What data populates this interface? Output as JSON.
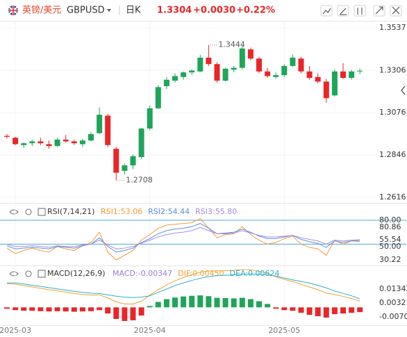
{
  "header": {
    "pair_cn": "英镑/美元",
    "symbol": "GBPUSD",
    "period": "日K",
    "price": "1.3304",
    "change": "+0.0030",
    "change_pct": "+0.22%"
  },
  "chart_data": [
    {
      "type": "candlestick",
      "categories": [
        null,
        "2025-03",
        null,
        null,
        null,
        null,
        null,
        null,
        null,
        null,
        null,
        null,
        null,
        null,
        null,
        null,
        null,
        "2025-04",
        null,
        null,
        null,
        null,
        null,
        null,
        null,
        null,
        null,
        null,
        null,
        null,
        null,
        null,
        null,
        "2025-05",
        null,
        null,
        null,
        null,
        null,
        null,
        null,
        null,
        null
      ],
      "open": [
        1.295,
        1.294,
        1.29,
        1.291,
        1.292,
        1.2905,
        1.2895,
        1.293,
        1.292,
        1.2905,
        1.2925,
        1.2965,
        1.306,
        1.288,
        1.276,
        1.279,
        1.2835,
        1.299,
        1.31,
        1.322,
        1.325,
        1.327,
        1.3295,
        1.33,
        1.3375,
        1.334,
        1.325,
        1.331,
        1.332,
        1.342,
        1.337,
        1.33,
        1.327,
        1.328,
        1.333,
        1.337,
        1.33,
        1.327,
        1.3245,
        1.317,
        1.33,
        1.3265,
        1.33
      ],
      "high": [
        1.296,
        1.2945,
        1.2915,
        1.293,
        1.294,
        1.2925,
        1.294,
        1.2955,
        1.293,
        1.2935,
        1.297,
        1.3105,
        1.307,
        1.289,
        1.28,
        1.285,
        1.2995,
        1.3115,
        1.3225,
        1.327,
        1.329,
        1.33,
        1.331,
        1.339,
        1.3444,
        1.335,
        1.332,
        1.333,
        1.344,
        1.343,
        1.338,
        1.332,
        1.3295,
        1.334,
        1.339,
        1.338,
        1.333,
        1.329,
        1.326,
        1.331,
        1.3345,
        1.331,
        1.3315
      ],
      "low": [
        1.2935,
        1.29,
        1.2885,
        1.2895,
        1.29,
        1.288,
        1.289,
        1.2915,
        1.29,
        1.289,
        1.292,
        1.296,
        1.289,
        1.2708,
        1.274,
        1.277,
        1.2825,
        1.298,
        1.3095,
        1.3205,
        1.324,
        1.3255,
        1.328,
        1.3295,
        1.333,
        1.324,
        1.3245,
        1.3295,
        1.331,
        1.336,
        1.329,
        1.3265,
        1.326,
        1.327,
        1.3325,
        1.329,
        1.3255,
        1.3235,
        1.313,
        1.3165,
        1.326,
        1.3255,
        1.3285
      ],
      "close": [
        1.2945,
        1.2905,
        1.291,
        1.292,
        1.291,
        1.2895,
        1.293,
        1.292,
        1.291,
        1.2925,
        1.296,
        1.3065,
        1.29,
        1.275,
        1.279,
        1.284,
        1.299,
        1.31,
        1.3215,
        1.3255,
        1.3275,
        1.3295,
        1.3305,
        1.3375,
        1.334,
        1.325,
        1.3315,
        1.332,
        1.3425,
        1.337,
        1.33,
        1.3275,
        1.328,
        1.333,
        1.3375,
        1.33,
        1.3265,
        1.3245,
        1.3155,
        1.33,
        1.3265,
        1.33,
        1.3304
      ],
      "up_color": "#1fa55a",
      "down_color": "#e8262a",
      "ylim": [
        1.2586,
        1.3575
      ],
      "yticks": [
        1.3537,
        1.3306,
        1.3076,
        1.2846,
        1.2616
      ],
      "annotations": [
        "1.3444",
        "1.2708"
      ]
    },
    {
      "type": "line",
      "title": "RSI(7,14,21)",
      "series": [
        {
          "name": "RSI1:53.06",
          "color": "#f29a38",
          "values": [
            45,
            38,
            42,
            45,
            42,
            40,
            47,
            44,
            42,
            48,
            52,
            65,
            40,
            30,
            36,
            42,
            55,
            62,
            70,
            74,
            75,
            76,
            77,
            82,
            70,
            58,
            62,
            63,
            72,
            62,
            55,
            50,
            52,
            57,
            60,
            50,
            46,
            44,
            36,
            55,
            50,
            54,
            53.06
          ]
        },
        {
          "name": "RSI2:54.44",
          "color": "#5b8fe0",
          "values": [
            48,
            44,
            45,
            46,
            45,
            44,
            47,
            46,
            45,
            48,
            50,
            58,
            47,
            40,
            42,
            45,
            52,
            57,
            63,
            67,
            69,
            70,
            72,
            76,
            70,
            63,
            64,
            65,
            69,
            65,
            60,
            57,
            57,
            59,
            61,
            56,
            53,
            51,
            46,
            54,
            52,
            54,
            54.44
          ]
        },
        {
          "name": "RSI3:55.80",
          "color": "#a58ce0",
          "values": [
            50,
            47,
            47,
            48,
            47,
            46,
            48,
            47,
            47,
            49,
            50,
            55,
            49,
            44,
            45,
            47,
            51,
            55,
            59,
            62,
            64,
            65,
            67,
            71,
            67,
            63,
            63,
            64,
            67,
            64,
            61,
            59,
            59,
            60,
            61,
            58,
            56,
            54,
            50,
            55,
            54,
            55,
            55.8
          ]
        }
      ],
      "ylim": [
        23.2,
        97.5
      ],
      "yticks": [
        {
          "value": 80,
          "label": "80.00"
        },
        80.86,
        55.54,
        {
          "value": 50,
          "label": "50.00"
        },
        30.22
      ],
      "ref_lines": [
        80,
        50
      ],
      "ref_color": "#4aa8d8"
    },
    {
      "type": "macd",
      "title": "MACD(12,26,9)",
      "series": [
        {
          "name": "MACD:-0.00347",
          "type": "bar",
          "color": "#9b7fd6",
          "up_color": "#1fa55a",
          "down_color": "#e8262a",
          "values": [
            -0.001,
            -0.002,
            -0.0025,
            -0.0025,
            -0.0028,
            -0.003,
            -0.0028,
            -0.003,
            -0.0032,
            -0.003,
            -0.0028,
            -0.002,
            -0.0045,
            -0.0085,
            -0.01,
            -0.0095,
            -0.006,
            0.001,
            0.004,
            0.006,
            0.0072,
            0.008,
            0.0085,
            0.0088,
            0.0082,
            0.007,
            0.0068,
            0.0066,
            0.007,
            0.006,
            0.0045,
            0.0025,
            -0.001,
            -0.002,
            -0.0025,
            -0.004,
            -0.0055,
            -0.0065,
            -0.0075,
            -0.005,
            -0.0045,
            -0.004,
            -0.00347
          ]
        },
        {
          "name": "DIF:0.00450",
          "type": "line",
          "color": "#f0a030",
          "values": [
            0.0175,
            0.017,
            0.016,
            0.015,
            0.014,
            0.013,
            0.0122,
            0.0112,
            0.0102,
            0.0095,
            0.009,
            0.0092,
            0.007,
            0.004,
            0.0025,
            0.0025,
            0.0045,
            0.009,
            0.013,
            0.0165,
            0.0195,
            0.022,
            0.024,
            0.0258,
            0.0268,
            0.0268,
            0.027,
            0.0272,
            0.0278,
            0.0275,
            0.0265,
            0.025,
            0.0225,
            0.0205,
            0.019,
            0.017,
            0.015,
            0.013,
            0.0105,
            0.0095,
            0.008,
            0.0065,
            0.0045
          ]
        },
        {
          "name": "DEA:0.00624",
          "type": "line",
          "color": "#2bb0c8",
          "values": [
            0.018,
            0.018,
            0.0172,
            0.0162,
            0.0154,
            0.0145,
            0.0136,
            0.0127,
            0.0118,
            0.011,
            0.0104,
            0.0102,
            0.0092,
            0.0082,
            0.0075,
            0.0072,
            0.0075,
            0.0085,
            0.011,
            0.0135,
            0.016,
            0.018,
            0.0198,
            0.0214,
            0.0227,
            0.0233,
            0.0236,
            0.0239,
            0.0243,
            0.0245,
            0.0243,
            0.0238,
            0.023,
            0.0215,
            0.0202,
            0.019,
            0.0178,
            0.0162,
            0.0143,
            0.012,
            0.0103,
            0.0085,
            0.00624
          ]
        }
      ],
      "ylim": [
        -0.0131,
        0.0303
      ],
      "yticks": [
        0.01342,
        0.00321,
        -0.00701
      ]
    }
  ]
}
